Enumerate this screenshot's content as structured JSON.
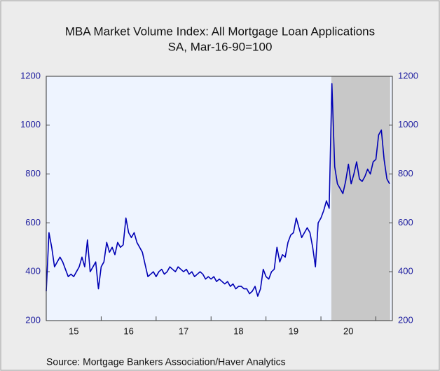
{
  "chart_data": {
    "type": "line",
    "title": "MBA Market Volume Index: All Mortgage Loan Applications",
    "subtitle": "SA, Mar-16-90=100",
    "source": "Source:  Mortgage Bankers Association/Haver Analytics",
    "x": [
      2015,
      2015.05,
      2015.1,
      2015.15,
      2015.2,
      2015.25,
      2015.3,
      2015.35,
      2015.4,
      2015.45,
      2015.5,
      2015.55,
      2015.6,
      2015.65,
      2015.7,
      2015.75,
      2015.8,
      2015.85,
      2015.9,
      2015.95,
      2016,
      2016.05,
      2016.1,
      2016.15,
      2016.2,
      2016.25,
      2016.3,
      2016.35,
      2016.4,
      2016.45,
      2016.5,
      2016.55,
      2016.6,
      2016.65,
      2016.7,
      2016.75,
      2016.8,
      2016.85,
      2016.9,
      2016.95,
      2017,
      2017.05,
      2017.1,
      2017.15,
      2017.2,
      2017.25,
      2017.3,
      2017.35,
      2017.4,
      2017.45,
      2017.5,
      2017.55,
      2017.6,
      2017.65,
      2017.7,
      2017.75,
      2017.8,
      2017.85,
      2017.9,
      2017.95,
      2018,
      2018.05,
      2018.1,
      2018.15,
      2018.2,
      2018.25,
      2018.3,
      2018.35,
      2018.4,
      2018.45,
      2018.5,
      2018.55,
      2018.6,
      2018.65,
      2018.7,
      2018.75,
      2018.8,
      2018.85,
      2018.9,
      2018.95,
      2019,
      2019.05,
      2019.1,
      2019.15,
      2019.2,
      2019.25,
      2019.3,
      2019.35,
      2019.4,
      2019.45,
      2019.5,
      2019.55,
      2019.6,
      2019.65,
      2019.7,
      2019.75,
      2019.8,
      2019.85,
      2019.9,
      2019.95,
      2020,
      2020.05,
      2020.1,
      2020.15,
      2020.2,
      2020.25,
      2020.3,
      2020.35,
      2020.4,
      2020.45,
      2020.5,
      2020.55,
      2020.6,
      2020.65,
      2020.7,
      2020.75,
      2020.8,
      2020.85,
      2020.9,
      2020.95,
      2021,
      2021.05,
      2021.1,
      2021.15,
      2021.2,
      2021.25
    ],
    "series": [
      {
        "color": "#0000b4",
        "values": [
          320,
          560,
          500,
          420,
          440,
          460,
          440,
          410,
          380,
          390,
          380,
          400,
          420,
          460,
          420,
          530,
          400,
          420,
          440,
          330,
          420,
          440,
          520,
          480,
          500,
          470,
          520,
          500,
          510,
          620,
          560,
          540,
          560,
          520,
          500,
          480,
          430,
          380,
          390,
          400,
          380,
          400,
          410,
          390,
          400,
          420,
          410,
          400,
          420,
          410,
          400,
          410,
          390,
          400,
          380,
          390,
          400,
          390,
          370,
          380,
          370,
          380,
          360,
          370,
          360,
          350,
          360,
          340,
          350,
          330,
          340,
          340,
          330,
          330,
          310,
          320,
          340,
          300,
          330,
          410,
          380,
          370,
          400,
          410,
          500,
          440,
          470,
          460,
          520,
          550,
          560,
          620,
          580,
          540,
          560,
          580,
          560,
          500,
          420,
          600,
          620,
          650,
          690,
          660,
          1170,
          830,
          760,
          740,
          720,
          770,
          840,
          760,
          800,
          850,
          780,
          770,
          790,
          820,
          800,
          850,
          860,
          960,
          980,
          860,
          780,
          760
        ]
      }
    ],
    "xlim": [
      2015,
      2021.3
    ],
    "xticks": [
      {
        "value": 2015.5,
        "label": "15"
      },
      {
        "value": 2016.5,
        "label": "16"
      },
      {
        "value": 2017.5,
        "label": "17"
      },
      {
        "value": 2018.5,
        "label": "18"
      },
      {
        "value": 2019.5,
        "label": "19"
      },
      {
        "value": 2020.5,
        "label": "20"
      }
    ],
    "ylim": [
      200,
      1200
    ],
    "yticks": [
      200,
      400,
      600,
      800,
      1000,
      1200
    ],
    "shaded_x": [
      2020.19,
      2021.26
    ],
    "shade_color": "#c8c8c8",
    "background": "#eef4ff"
  }
}
